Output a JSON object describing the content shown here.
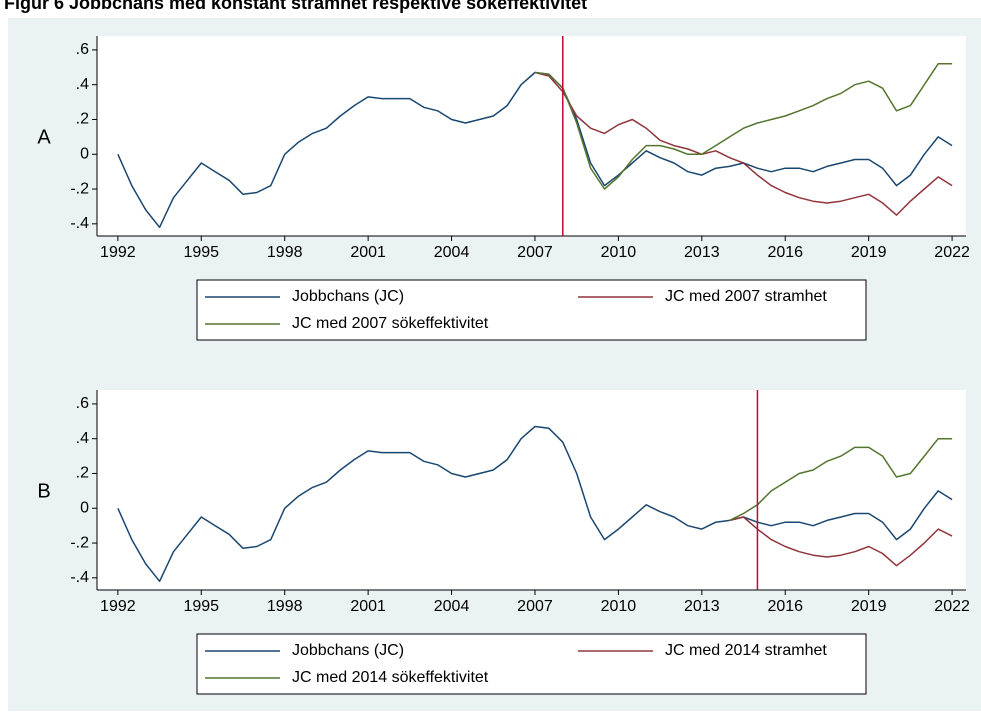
{
  "title": "Figur 6 Jobbchans med konstant stramhet respektive sökeffektivitet",
  "chart_data": [
    {
      "type": "line",
      "label": "A",
      "vline": 2008,
      "vline_color": "#c10534",
      "x": [
        1992,
        1992.5,
        1993,
        1993.5,
        1994,
        1994.5,
        1995,
        1995.5,
        1996,
        1996.5,
        1997,
        1997.5,
        1998,
        1998.5,
        1999,
        1999.5,
        2000,
        2000.5,
        2001,
        2001.5,
        2002,
        2002.5,
        2003,
        2003.5,
        2004,
        2004.5,
        2005,
        2005.5,
        2006,
        2006.5,
        2007,
        2007.5,
        2008,
        2008.5,
        2009,
        2009.5,
        2010,
        2010.5,
        2011,
        2011.5,
        2012,
        2012.5,
        2013,
        2013.5,
        2014,
        2014.5,
        2015,
        2015.5,
        2016,
        2016.5,
        2017,
        2017.5,
        2018,
        2018.5,
        2019,
        2019.5,
        2020,
        2020.5,
        2021,
        2021.5,
        2022
      ],
      "xlim": [
        1991.25,
        2022.5
      ],
      "ylim": [
        -0.47,
        0.68
      ],
      "xticks": [
        1992,
        1995,
        1998,
        2001,
        2004,
        2007,
        2010,
        2013,
        2016,
        2019,
        2022
      ],
      "yticks": [
        {
          "value": 0.6,
          "label": ".6"
        },
        {
          "value": 0.4,
          "label": ".4"
        },
        {
          "value": 0.2,
          "label": ".2"
        },
        0,
        {
          "value": -0.2,
          "label": "-.2"
        },
        {
          "value": -0.4,
          "label": "-.4"
        }
      ],
      "series": [
        {
          "name": "Jobbchans (JC)",
          "color": "#1a476f",
          "values": [
            0,
            -0.18,
            -0.32,
            -0.42,
            -0.25,
            -0.15,
            -0.05,
            -0.1,
            -0.15,
            -0.23,
            -0.22,
            -0.18,
            0,
            0.07,
            0.12,
            0.15,
            0.22,
            0.28,
            0.33,
            0.32,
            0.32,
            0.32,
            0.27,
            0.25,
            0.2,
            0.18,
            0.2,
            0.22,
            0.28,
            0.4,
            0.47,
            0.46,
            0.38,
            0.2,
            -0.05,
            -0.18,
            -0.12,
            -0.05,
            0.02,
            -0.02,
            -0.05,
            -0.1,
            -0.12,
            -0.08,
            -0.07,
            -0.05,
            -0.08,
            -0.1,
            -0.08,
            -0.08,
            -0.1,
            -0.07,
            -0.05,
            -0.03,
            -0.03,
            -0.08,
            -0.18,
            -0.12,
            0,
            0.1,
            0.05
          ]
        },
        {
          "name": "JC med 2007 stramhet",
          "color": "#90353b",
          "values": [
            null,
            null,
            null,
            null,
            null,
            null,
            null,
            null,
            null,
            null,
            null,
            null,
            null,
            null,
            null,
            null,
            null,
            null,
            null,
            null,
            null,
            null,
            null,
            null,
            null,
            null,
            null,
            null,
            null,
            null,
            0.47,
            0.45,
            0.36,
            0.22,
            0.15,
            0.12,
            0.17,
            0.2,
            0.15,
            0.08,
            0.05,
            0.03,
            0,
            0.02,
            -0.02,
            -0.05,
            -0.12,
            -0.18,
            -0.22,
            -0.25,
            -0.27,
            -0.28,
            -0.27,
            -0.25,
            -0.23,
            -0.28,
            -0.35,
            -0.27,
            -0.2,
            -0.13,
            -0.18
          ]
        },
        {
          "name": "JC med 2007 sökeffektivitet",
          "color": "#55752f",
          "values": [
            null,
            null,
            null,
            null,
            null,
            null,
            null,
            null,
            null,
            null,
            null,
            null,
            null,
            null,
            null,
            null,
            null,
            null,
            null,
            null,
            null,
            null,
            null,
            null,
            null,
            null,
            null,
            null,
            null,
            null,
            0.47,
            0.46,
            0.38,
            0.18,
            -0.08,
            -0.2,
            -0.13,
            -0.03,
            0.05,
            0.05,
            0.03,
            0,
            0,
            0.05,
            0.1,
            0.15,
            0.18,
            0.2,
            0.22,
            0.25,
            0.28,
            0.32,
            0.35,
            0.4,
            0.42,
            0.38,
            0.25,
            0.28,
            0.4,
            0.52,
            0.52
          ]
        }
      ]
    },
    {
      "type": "line",
      "label": "B",
      "vline": 2015,
      "vline_color": "#c10534",
      "x": [
        1992,
        1992.5,
        1993,
        1993.5,
        1994,
        1994.5,
        1995,
        1995.5,
        1996,
        1996.5,
        1997,
        1997.5,
        1998,
        1998.5,
        1999,
        1999.5,
        2000,
        2000.5,
        2001,
        2001.5,
        2002,
        2002.5,
        2003,
        2003.5,
        2004,
        2004.5,
        2005,
        2005.5,
        2006,
        2006.5,
        2007,
        2007.5,
        2008,
        2008.5,
        2009,
        2009.5,
        2010,
        2010.5,
        2011,
        2011.5,
        2012,
        2012.5,
        2013,
        2013.5,
        2014,
        2014.5,
        2015,
        2015.5,
        2016,
        2016.5,
        2017,
        2017.5,
        2018,
        2018.5,
        2019,
        2019.5,
        2020,
        2020.5,
        2021,
        2021.5,
        2022
      ],
      "xlim": [
        1991.25,
        2022.5
      ],
      "ylim": [
        -0.47,
        0.68
      ],
      "xticks": [
        1992,
        1995,
        1998,
        2001,
        2004,
        2007,
        2010,
        2013,
        2016,
        2019,
        2022
      ],
      "yticks": [
        {
          "value": 0.6,
          "label": ".6"
        },
        {
          "value": 0.4,
          "label": ".4"
        },
        {
          "value": 0.2,
          "label": ".2"
        },
        0,
        {
          "value": -0.2,
          "label": "-.2"
        },
        {
          "value": -0.4,
          "label": "-.4"
        }
      ],
      "series": [
        {
          "name": "Jobbchans (JC)",
          "color": "#1a476f",
          "values": [
            0,
            -0.18,
            -0.32,
            -0.42,
            -0.25,
            -0.15,
            -0.05,
            -0.1,
            -0.15,
            -0.23,
            -0.22,
            -0.18,
            0,
            0.07,
            0.12,
            0.15,
            0.22,
            0.28,
            0.33,
            0.32,
            0.32,
            0.32,
            0.27,
            0.25,
            0.2,
            0.18,
            0.2,
            0.22,
            0.28,
            0.4,
            0.47,
            0.46,
            0.38,
            0.2,
            -0.05,
            -0.18,
            -0.12,
            -0.05,
            0.02,
            -0.02,
            -0.05,
            -0.1,
            -0.12,
            -0.08,
            -0.07,
            -0.05,
            -0.08,
            -0.1,
            -0.08,
            -0.08,
            -0.1,
            -0.07,
            -0.05,
            -0.03,
            -0.03,
            -0.08,
            -0.18,
            -0.12,
            0,
            0.1,
            0.05
          ]
        },
        {
          "name": "JC med 2014 stramhet",
          "color": "#90353b",
          "values": [
            null,
            null,
            null,
            null,
            null,
            null,
            null,
            null,
            null,
            null,
            null,
            null,
            null,
            null,
            null,
            null,
            null,
            null,
            null,
            null,
            null,
            null,
            null,
            null,
            null,
            null,
            null,
            null,
            null,
            null,
            null,
            null,
            null,
            null,
            null,
            null,
            null,
            null,
            null,
            null,
            null,
            null,
            null,
            null,
            -0.07,
            -0.05,
            -0.12,
            -0.18,
            -0.22,
            -0.25,
            -0.27,
            -0.28,
            -0.27,
            -0.25,
            -0.22,
            -0.26,
            -0.33,
            -0.27,
            -0.2,
            -0.12,
            -0.16
          ]
        },
        {
          "name": "JC med 2014 sökeffektivitet",
          "color": "#55752f",
          "values": [
            null,
            null,
            null,
            null,
            null,
            null,
            null,
            null,
            null,
            null,
            null,
            null,
            null,
            null,
            null,
            null,
            null,
            null,
            null,
            null,
            null,
            null,
            null,
            null,
            null,
            null,
            null,
            null,
            null,
            null,
            null,
            null,
            null,
            null,
            null,
            null,
            null,
            null,
            null,
            null,
            null,
            null,
            null,
            null,
            -0.07,
            -0.03,
            0.02,
            0.1,
            0.15,
            0.2,
            0.22,
            0.27,
            0.3,
            0.35,
            0.35,
            0.3,
            0.18,
            0.2,
            0.3,
            0.4,
            0.4
          ]
        }
      ]
    }
  ]
}
